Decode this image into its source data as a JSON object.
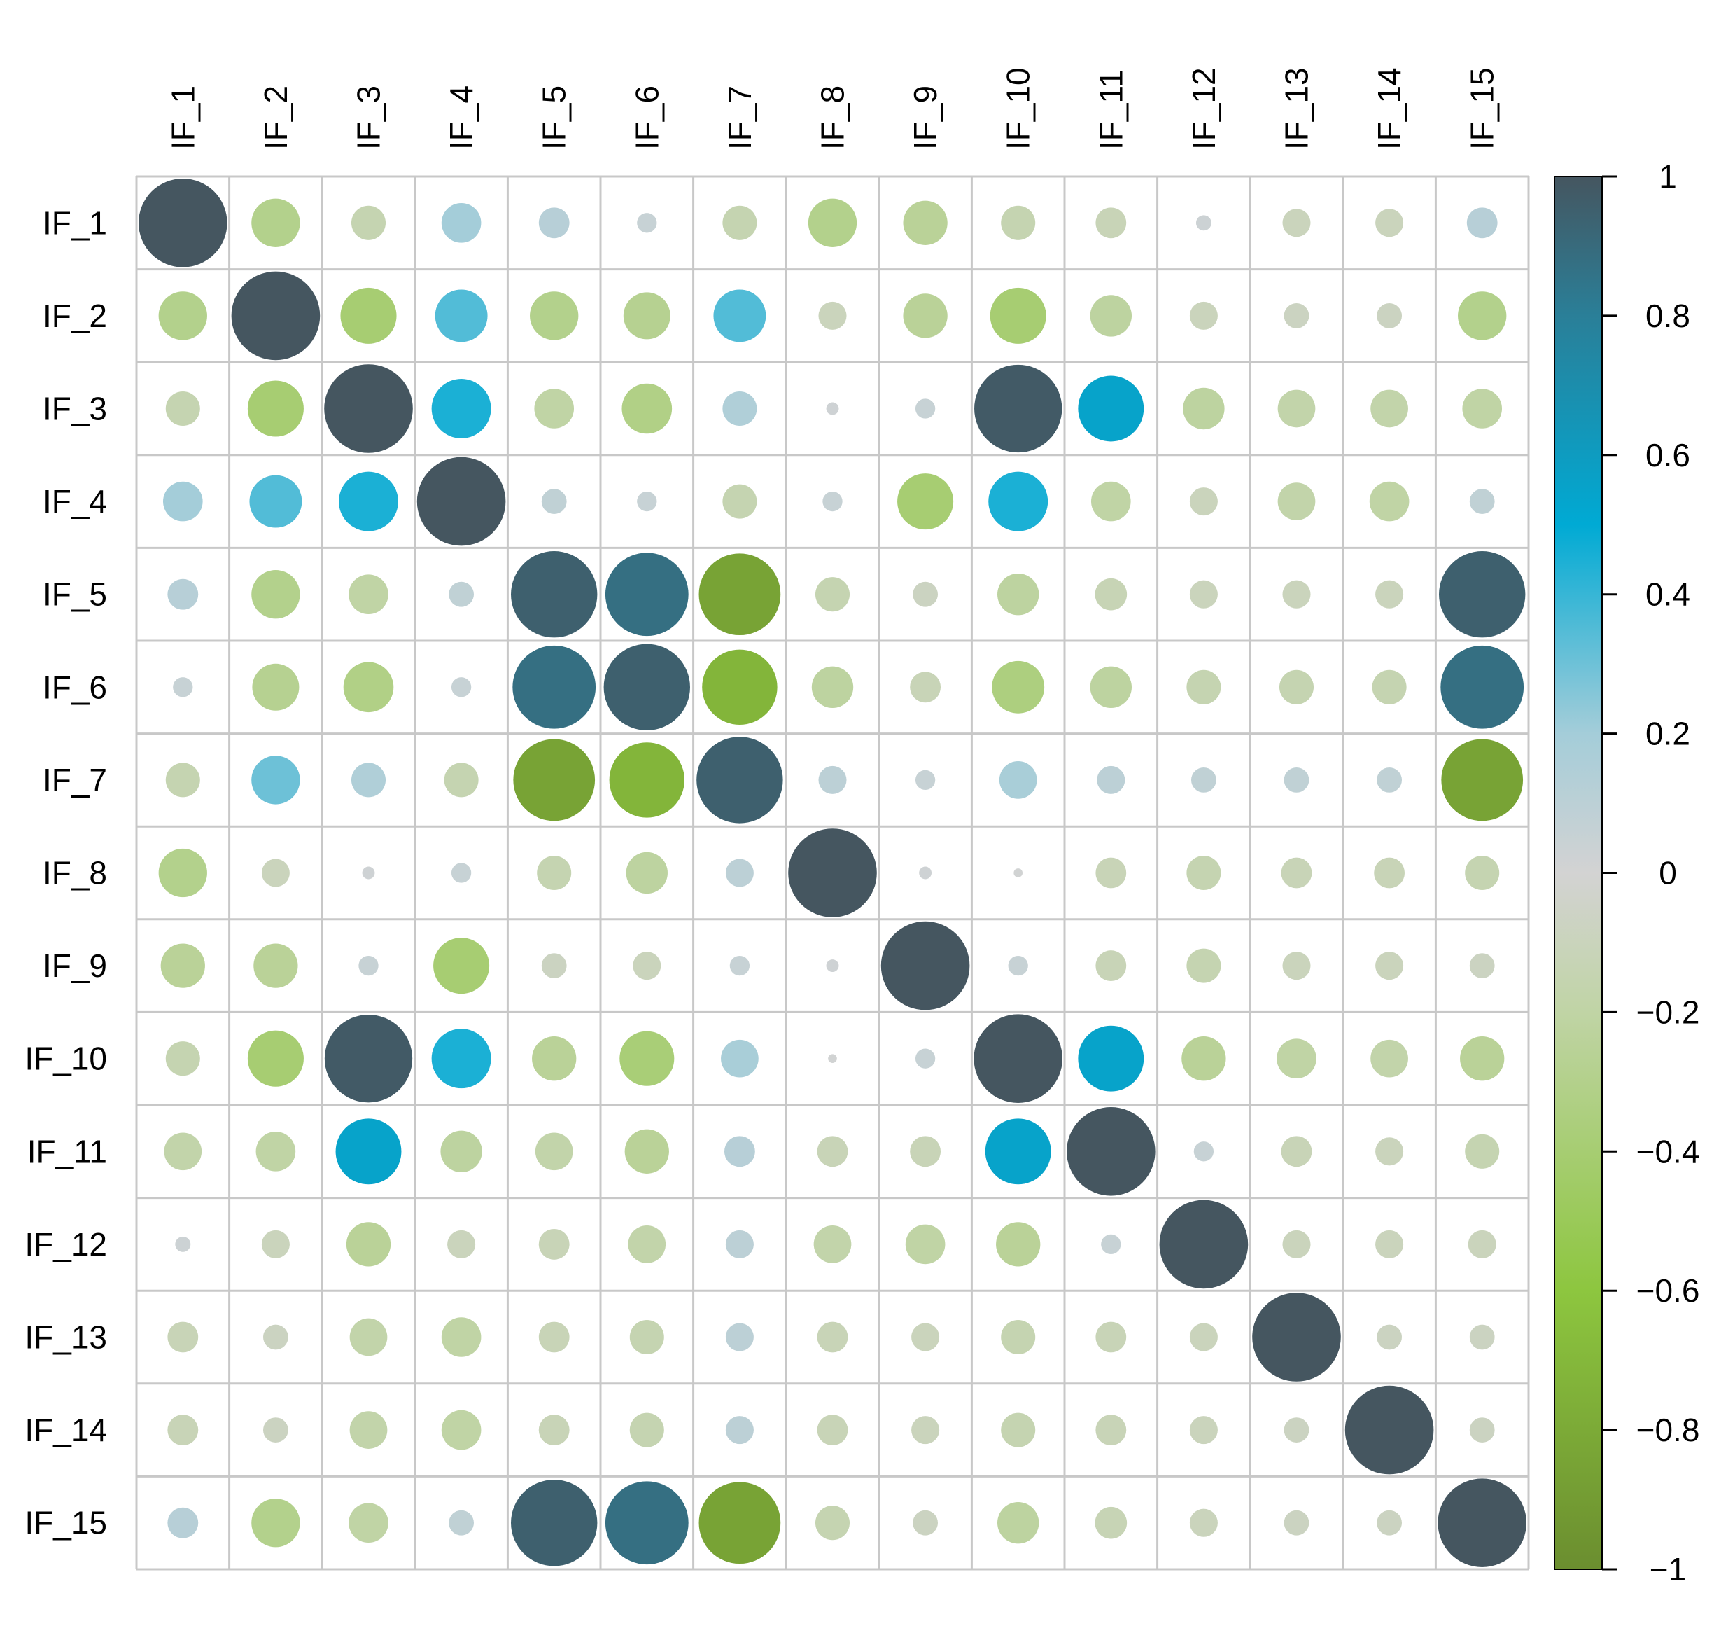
{
  "chart_data": {
    "type": "heatmap",
    "subtype": "correlation-circle-matrix",
    "variables": [
      "IF_1",
      "IF_2",
      "IF_3",
      "IF_4",
      "IF_5",
      "IF_6",
      "IF_7",
      "IF_8",
      "IF_9",
      "IF_10",
      "IF_11",
      "IF_12",
      "IF_13",
      "IF_14",
      "IF_15"
    ],
    "matrix": [
      [
        1.0,
        -0.3,
        -0.15,
        0.2,
        0.12,
        0.05,
        -0.15,
        -0.3,
        -0.25,
        -0.15,
        -0.12,
        0.03,
        -0.1,
        -0.1,
        0.12
      ],
      [
        -0.3,
        1.0,
        -0.4,
        0.35,
        -0.3,
        -0.28,
        0.35,
        -0.1,
        -0.25,
        -0.4,
        -0.22,
        -0.1,
        -0.08,
        -0.08,
        -0.3
      ],
      [
        -0.15,
        -0.4,
        1.0,
        0.45,
        -0.2,
        -0.32,
        0.15,
        0.02,
        0.05,
        0.98,
        0.55,
        -0.22,
        -0.18,
        -0.18,
        -0.2
      ],
      [
        0.2,
        0.35,
        0.45,
        1.0,
        0.08,
        0.05,
        -0.15,
        0.05,
        -0.4,
        0.45,
        -0.2,
        -0.1,
        -0.18,
        -0.2,
        0.08
      ],
      [
        0.12,
        -0.3,
        -0.2,
        0.08,
        0.95,
        0.88,
        -0.85,
        -0.15,
        -0.08,
        -0.22,
        -0.13,
        -0.1,
        -0.1,
        -0.1,
        0.95
      ],
      [
        0.05,
        -0.28,
        -0.32,
        0.05,
        0.88,
        0.95,
        -0.72,
        -0.22,
        -0.12,
        -0.35,
        -0.22,
        -0.15,
        -0.15,
        -0.15,
        0.88
      ],
      [
        -0.15,
        0.3,
        0.15,
        -0.15,
        -0.85,
        -0.72,
        0.95,
        0.1,
        0.05,
        0.18,
        0.1,
        0.08,
        0.08,
        0.08,
        -0.85
      ],
      [
        -0.3,
        -0.1,
        0.02,
        0.05,
        -0.15,
        -0.22,
        0.1,
        1.0,
        0.02,
        0.01,
        -0.12,
        -0.15,
        -0.12,
        -0.12,
        -0.15
      ],
      [
        -0.25,
        -0.25,
        0.05,
        -0.4,
        -0.08,
        -0.1,
        0.05,
        0.02,
        1.0,
        0.05,
        -0.12,
        -0.15,
        -0.1,
        -0.1,
        -0.08
      ],
      [
        -0.15,
        -0.4,
        0.98,
        0.45,
        -0.25,
        -0.38,
        0.18,
        0.01,
        0.05,
        1.0,
        0.55,
        -0.25,
        -0.2,
        -0.18,
        -0.25
      ],
      [
        -0.18,
        -0.2,
        0.55,
        -0.22,
        -0.18,
        -0.25,
        0.12,
        -0.12,
        -0.12,
        0.55,
        1.0,
        0.05,
        -0.12,
        -0.1,
        -0.15
      ],
      [
        0.03,
        -0.1,
        -0.25,
        -0.1,
        -0.12,
        -0.18,
        0.1,
        -0.18,
        -0.2,
        -0.25,
        0.05,
        1.0,
        -0.1,
        -0.1,
        -0.1
      ],
      [
        -0.12,
        -0.08,
        -0.18,
        -0.2,
        -0.12,
        -0.15,
        0.1,
        -0.12,
        -0.1,
        -0.15,
        -0.12,
        -0.1,
        1.0,
        -0.08,
        -0.08
      ],
      [
        -0.12,
        -0.08,
        -0.18,
        -0.2,
        -0.12,
        -0.15,
        0.1,
        -0.12,
        -0.1,
        -0.15,
        -0.12,
        -0.1,
        -0.08,
        1.0,
        -0.08
      ],
      [
        0.12,
        -0.3,
        -0.2,
        0.08,
        0.95,
        0.88,
        -0.85,
        -0.15,
        -0.08,
        -0.22,
        -0.13,
        -0.1,
        -0.08,
        -0.08,
        1.0
      ]
    ],
    "colorbar": {
      "range": [
        -1,
        1
      ],
      "ticks": [
        "1",
        "0.8",
        "0.6",
        "0.4",
        "0.2",
        "0",
        "−0.2",
        "−0.4",
        "−0.6",
        "−0.8",
        "−1"
      ],
      "tick_values": [
        1,
        0.8,
        0.6,
        0.4,
        0.2,
        0,
        -0.2,
        -0.4,
        -0.6,
        -0.8,
        -1
      ],
      "stops": [
        {
          "value": -1.0,
          "color": "#6b8e2f"
        },
        {
          "value": -0.6,
          "color": "#8dc63f"
        },
        {
          "value": -0.2,
          "color": "#c0d4a5"
        },
        {
          "value": 0.0,
          "color": "#d3d3d3"
        },
        {
          "value": 0.2,
          "color": "#a4cdd9"
        },
        {
          "value": 0.5,
          "color": "#00aad4"
        },
        {
          "value": 0.8,
          "color": "#2a7f98"
        },
        {
          "value": 1.0,
          "color": "#455660"
        }
      ],
      "placement": "right"
    },
    "grid": true,
    "grid_color": "#c8c8c8"
  }
}
